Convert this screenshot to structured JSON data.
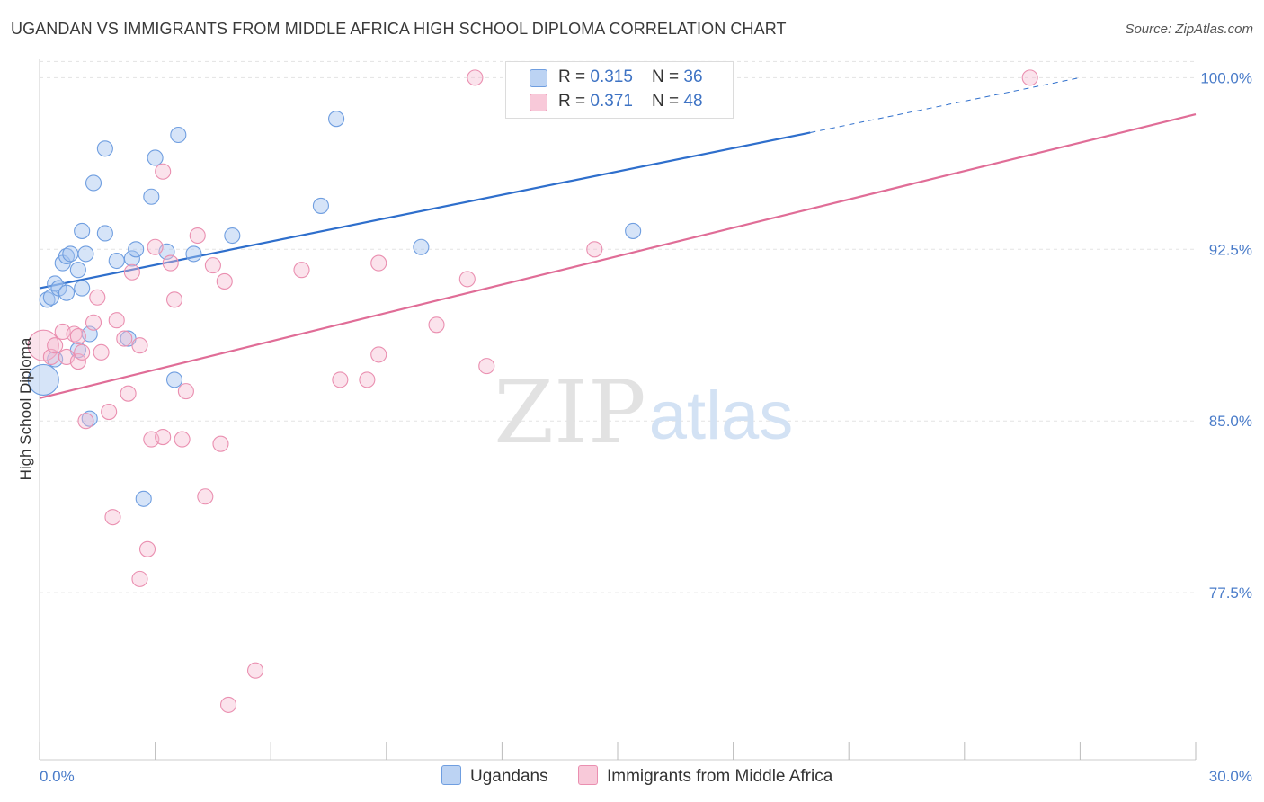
{
  "title": "UGANDAN VS IMMIGRANTS FROM MIDDLE AFRICA HIGH SCHOOL DIPLOMA CORRELATION CHART",
  "source": "Source: ZipAtlas.com",
  "watermark": {
    "zip": "ZIP",
    "atlas": "atlas"
  },
  "legend": {
    "rows": [
      {
        "r_label": "R = ",
        "r_value": "0.315",
        "n_label": "N = ",
        "n_value": "36"
      },
      {
        "r_label": "R = ",
        "r_value": "0.371",
        "n_label": "N = ",
        "n_value": "48"
      }
    ]
  },
  "chart_data": {
    "type": "scatter",
    "title": "UGANDAN VS IMMIGRANTS FROM MIDDLE AFRICA HIGH SCHOOL DIPLOMA CORRELATION CHART",
    "xlabel": "",
    "ylabel": "High School Diploma",
    "xlim": [
      0,
      30
    ],
    "ylim": [
      70.2,
      100.8
    ],
    "x_tick_labels": [
      "0.0%",
      "30.0%"
    ],
    "y_ticks": [
      77.5,
      85.0,
      92.5,
      100.0
    ],
    "y_tick_labels": [
      "77.5%",
      "85.0%",
      "92.5%",
      "100.0%"
    ],
    "grid": true,
    "legend_position": "top-center",
    "colors": {
      "ugandans": "#6f9ee0",
      "middle_africa": "#ea8fb0",
      "ugandans_line": "#2f6fcc",
      "middle_africa_line": "#e06d97"
    },
    "series": [
      {
        "name": "Ugandans",
        "r": 0.315,
        "n": 36,
        "trend": {
          "x0": 0,
          "y0": 90.8,
          "x1": 20.0,
          "y1": 97.6,
          "dash_to_x": 27.0,
          "dash_to_y": 100.0
        },
        "points": [
          [
            0.1,
            86.8,
            2.0
          ],
          [
            0.2,
            90.3,
            1
          ],
          [
            0.4,
            87.7,
            1
          ],
          [
            0.3,
            90.4,
            1
          ],
          [
            0.4,
            91.0,
            1
          ],
          [
            0.5,
            90.8,
            1
          ],
          [
            0.6,
            91.9,
            1
          ],
          [
            0.7,
            92.2,
            1
          ],
          [
            0.7,
            90.6,
            1
          ],
          [
            0.8,
            92.3,
            1
          ],
          [
            1.0,
            91.6,
            1
          ],
          [
            1.0,
            88.1,
            1
          ],
          [
            1.1,
            93.3,
            1
          ],
          [
            1.1,
            90.8,
            1
          ],
          [
            1.2,
            92.3,
            1
          ],
          [
            1.3,
            88.8,
            1
          ],
          [
            1.3,
            85.1,
            1
          ],
          [
            1.4,
            95.4,
            1
          ],
          [
            1.7,
            96.9,
            1
          ],
          [
            1.7,
            93.2,
            1
          ],
          [
            2.0,
            92.0,
            1
          ],
          [
            2.3,
            88.6,
            1
          ],
          [
            2.4,
            92.1,
            1
          ],
          [
            2.5,
            92.5,
            1
          ],
          [
            2.7,
            81.6,
            1
          ],
          [
            2.9,
            94.8,
            1
          ],
          [
            3.0,
            96.5,
            1
          ],
          [
            3.3,
            92.4,
            1
          ],
          [
            3.5,
            86.8,
            1
          ],
          [
            3.6,
            97.5,
            1
          ],
          [
            4.0,
            92.3,
            1
          ],
          [
            5.0,
            93.1,
            1
          ],
          [
            7.3,
            94.4,
            1
          ],
          [
            7.7,
            98.2,
            1
          ],
          [
            9.9,
            92.6,
            1
          ],
          [
            15.4,
            93.3,
            1
          ]
        ]
      },
      {
        "name": "Immigrants from Middle Africa",
        "r": 0.371,
        "n": 48,
        "trend": {
          "x0": 0,
          "y0": 86.0,
          "x1": 30.0,
          "y1": 98.4
        },
        "points": [
          [
            0.1,
            88.3,
            2.0
          ],
          [
            0.3,
            87.8,
            1
          ],
          [
            0.4,
            88.3,
            1
          ],
          [
            0.6,
            88.9,
            1
          ],
          [
            0.7,
            87.8,
            1
          ],
          [
            0.9,
            88.8,
            1
          ],
          [
            1.0,
            88.7,
            1
          ],
          [
            1.0,
            87.6,
            1
          ],
          [
            1.1,
            88.0,
            1
          ],
          [
            1.2,
            85.0,
            1
          ],
          [
            1.4,
            89.3,
            1
          ],
          [
            1.5,
            90.4,
            1
          ],
          [
            1.6,
            88.0,
            1
          ],
          [
            1.8,
            85.4,
            1
          ],
          [
            1.9,
            80.8,
            1
          ],
          [
            2.0,
            89.4,
            1
          ],
          [
            2.2,
            88.6,
            1
          ],
          [
            2.3,
            86.2,
            1
          ],
          [
            2.4,
            91.5,
            1
          ],
          [
            2.6,
            88.3,
            1
          ],
          [
            2.6,
            78.1,
            1
          ],
          [
            2.8,
            79.4,
            1
          ],
          [
            2.9,
            84.2,
            1
          ],
          [
            3.0,
            92.6,
            1
          ],
          [
            3.2,
            84.3,
            1
          ],
          [
            3.2,
            95.9,
            1
          ],
          [
            3.4,
            91.9,
            1
          ],
          [
            3.5,
            90.3,
            1
          ],
          [
            3.7,
            84.2,
            1
          ],
          [
            3.8,
            86.3,
            1
          ],
          [
            4.1,
            93.1,
            1
          ],
          [
            4.3,
            81.7,
            1
          ],
          [
            4.5,
            91.8,
            1
          ],
          [
            4.7,
            84.0,
            1
          ],
          [
            4.8,
            91.1,
            1
          ],
          [
            4.9,
            72.6,
            1
          ],
          [
            5.6,
            74.1,
            1
          ],
          [
            6.8,
            91.6,
            1
          ],
          [
            7.8,
            86.8,
            1
          ],
          [
            8.5,
            86.8,
            1
          ],
          [
            8.8,
            87.9,
            1
          ],
          [
            8.8,
            91.9,
            1
          ],
          [
            10.3,
            89.2,
            1
          ],
          [
            11.1,
            91.2,
            1
          ],
          [
            11.3,
            100.0,
            1
          ],
          [
            11.6,
            87.4,
            1
          ],
          [
            14.4,
            92.5,
            1
          ],
          [
            25.7,
            100.0,
            1
          ]
        ]
      }
    ]
  },
  "bottom_legend": {
    "ugandans": "Ugandans",
    "middle_africa": "Immigrants from Middle Africa"
  }
}
